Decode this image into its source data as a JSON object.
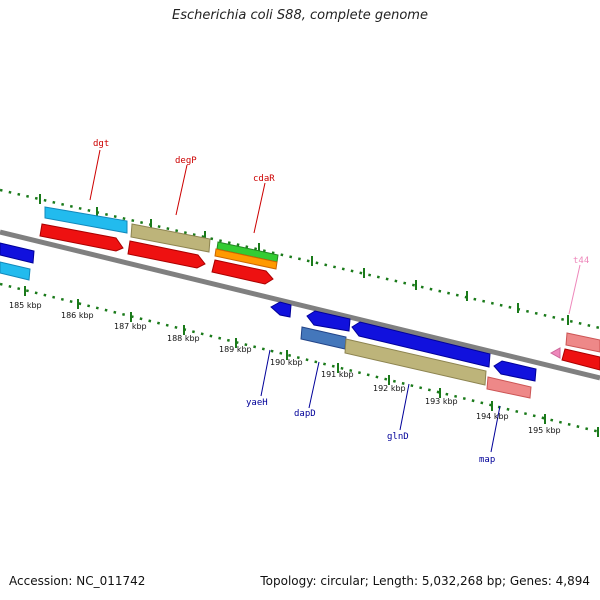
{
  "title": "Escherichia coli S88, complete genome",
  "footer": {
    "accession": "Accession: NC_011742",
    "summary": "Topology: circular; Length: 5,032,268 bp; Genes: 4,894"
  },
  "ticks": [
    "185 kbp",
    "186 kbp",
    "187 kbp",
    "188 kbp",
    "189 kbp",
    "190 kbp",
    "191 kbp",
    "192 kbp",
    "193 kbp",
    "194 kbp",
    "195 kbp"
  ],
  "genes": {
    "dgt": "dgt",
    "degP": "degP",
    "cdaR": "cdaR",
    "t44": "t44",
    "yaeH": "yaeH",
    "dapD": "dapD",
    "glnD": "glnD",
    "map": "map"
  },
  "colors": {
    "red_label": "#cc0000",
    "blue_label": "#000099",
    "pink_label": "#ee88bb",
    "tick_green": "#1a7a1a"
  }
}
